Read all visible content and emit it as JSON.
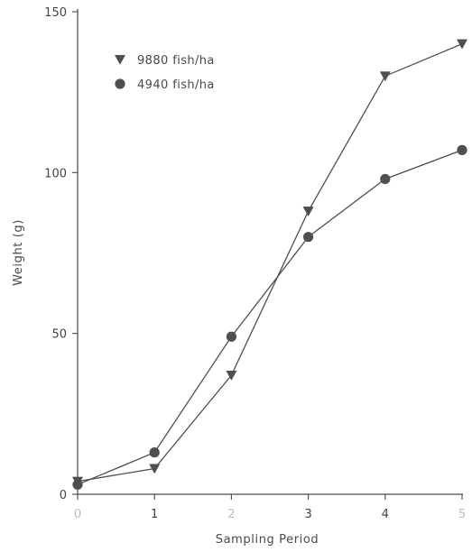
{
  "chart_data": {
    "type": "line",
    "title": "",
    "xlabel": "Sampling Period",
    "ylabel": "Weight (g)",
    "x": [
      0,
      1,
      2,
      3,
      4,
      5
    ],
    "xticks": [
      "0",
      "1",
      "2",
      "3",
      "4",
      "5"
    ],
    "yticks": [
      "0",
      "50",
      "100",
      "150"
    ],
    "xlim": [
      0,
      5
    ],
    "ylim": [
      0,
      150
    ],
    "grid": false,
    "legend_position": "top-left",
    "series": [
      {
        "name": "9880 fish/ha",
        "marker": "triangle-down",
        "color": "#4f4f4f",
        "values": [
          4,
          8,
          37,
          88,
          130,
          140
        ]
      },
      {
        "name": "4940 fish/ha",
        "marker": "circle",
        "color": "#4f4f4f",
        "values": [
          3,
          13,
          49,
          80,
          98,
          107
        ]
      }
    ]
  }
}
